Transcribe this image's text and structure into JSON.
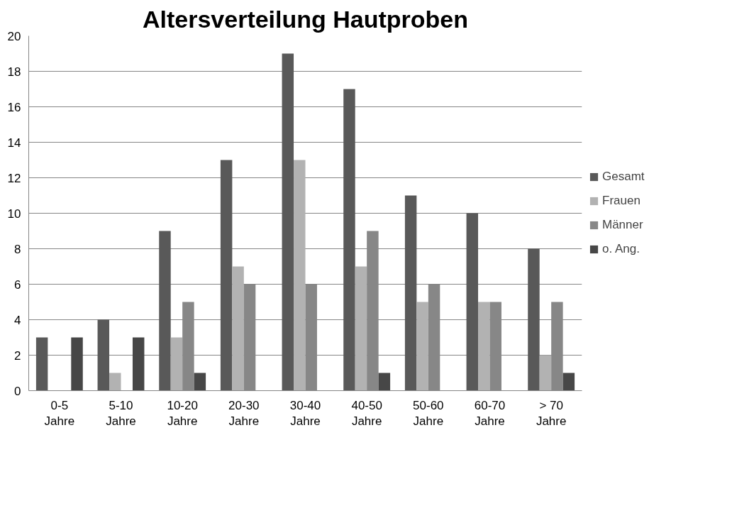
{
  "chart_data": {
    "type": "bar",
    "title": "Altersverteilung Hautproben",
    "categories": [
      "0-5 Jahre",
      "5-10 Jahre",
      "10-20 Jahre",
      "20-30 Jahre",
      "30-40 Jahre",
      "40-50 Jahre",
      "50-60 Jahre",
      "60-70 Jahre",
      "> 70 Jahre"
    ],
    "series": [
      {
        "name": "Gesamt",
        "color": "#595959",
        "values": [
          3,
          4,
          9,
          13,
          19,
          17,
          11,
          10,
          8
        ]
      },
      {
        "name": "Frauen",
        "color": "#b2b2b2",
        "values": [
          0,
          1,
          3,
          7,
          13,
          7,
          5,
          5,
          2
        ]
      },
      {
        "name": "Männer",
        "color": "#878787",
        "values": [
          0,
          0,
          5,
          6,
          6,
          9,
          6,
          5,
          5
        ]
      },
      {
        "name": "o. Ang.",
        "color": "#474747",
        "values": [
          3,
          3,
          1,
          0,
          0,
          1,
          0,
          0,
          1
        ]
      }
    ],
    "ylim": [
      0,
      20
    ],
    "yticks": [
      0,
      2,
      4,
      6,
      8,
      10,
      12,
      14,
      16,
      18,
      20
    ],
    "grid": "y",
    "legend": "right"
  }
}
